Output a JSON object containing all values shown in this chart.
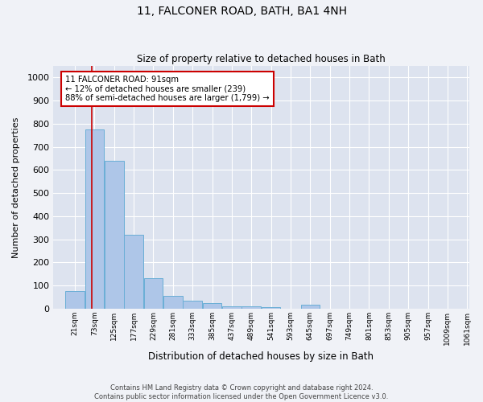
{
  "title": "11, FALCONER ROAD, BATH, BA1 4NH",
  "subtitle": "Size of property relative to detached houses in Bath",
  "xlabel": "Distribution of detached houses by size in Bath",
  "ylabel": "Number of detached properties",
  "bar_color": "#aec6e8",
  "bar_edge_color": "#6aaed6",
  "fig_bg_color": "#f0f2f7",
  "plot_bg_color": "#dde3ef",
  "annotation_line_color": "#cc0000",
  "bins_left_edges": [
    21,
    73,
    125,
    177,
    229,
    281,
    333,
    385,
    437,
    489,
    541,
    593,
    645,
    697,
    749,
    801,
    853,
    905,
    957,
    1009
  ],
  "bin_labels": [
    "21sqm",
    "73sqm",
    "125sqm",
    "177sqm",
    "229sqm",
    "281sqm",
    "333sqm",
    "385sqm",
    "437sqm",
    "489sqm",
    "541sqm",
    "593sqm",
    "645sqm",
    "697sqm",
    "749sqm",
    "801sqm",
    "853sqm",
    "905sqm",
    "957sqm",
    "1009sqm",
    "1061sqm"
  ],
  "bar_heights": [
    75,
    775,
    640,
    320,
    130,
    55,
    35,
    25,
    10,
    8,
    5,
    0,
    15,
    0,
    0,
    0,
    0,
    0,
    0,
    0
  ],
  "ylim": [
    0,
    1050
  ],
  "yticks": [
    0,
    100,
    200,
    300,
    400,
    500,
    600,
    700,
    800,
    900,
    1000
  ],
  "property_line_x": 91,
  "annotation_text_line1": "11 FALCONER ROAD: 91sqm",
  "annotation_text_line2": "← 12% of detached houses are smaller (239)",
  "annotation_text_line3": "88% of semi-detached houses are larger (1,799) →",
  "footer_line1": "Contains HM Land Registry data © Crown copyright and database right 2024.",
  "footer_line2": "Contains public sector information licensed under the Open Government Licence v3.0.",
  "bin_width": 52
}
